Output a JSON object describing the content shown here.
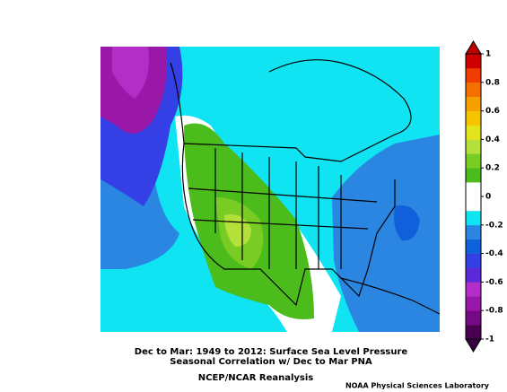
{
  "title": [
    "Dec to Mar: 1949 to 2012: Surface Sea Level Pressure",
    "Seasonal Correlation w/ Dec to Mar PNA"
  ],
  "subtitle": "NCEP/NCAR Reanalysis",
  "credit": "NOAA Physical Sciences Laboratory",
  "colorbar": {
    "lim": [
      -1,
      1
    ],
    "ticks": [
      1,
      0.8,
      0.6,
      0.4,
      0.2,
      0,
      -0.2,
      -0.4,
      -0.6,
      -0.8,
      -1
    ],
    "colors": [
      "#4a0050",
      "#760a86",
      "#9a18a8",
      "#b22ec6",
      "#5a2ad8",
      "#3440e6",
      "#1060dc",
      "#2a86e0",
      "#10e4f2",
      "#ffffff",
      "#ffffff",
      "#4cbc1c",
      "#78cc24",
      "#b4e03c",
      "#e4e41c",
      "#f4c400",
      "#f4a000",
      "#f47000",
      "#f03c00",
      "#cc0000"
    ],
    "low_color": "#3a0040",
    "high_color": "#c00000"
  }
}
